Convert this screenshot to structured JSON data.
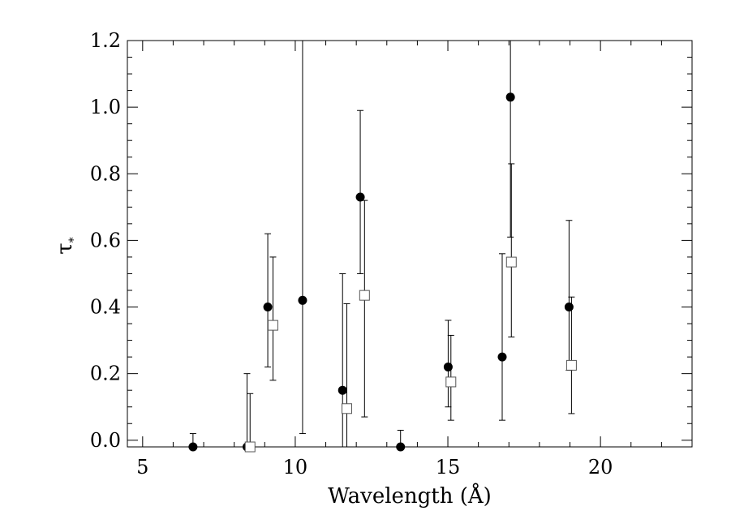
{
  "chart_data": {
    "type": "scatter",
    "xlabel": "Wavelength (Å)",
    "ylabel": "τ",
    "ylabel_sub": "*",
    "xlim": [
      4.5,
      23.0
    ],
    "ylim": [
      -0.02,
      1.2
    ],
    "x_ticks": [
      5,
      10,
      15,
      20
    ],
    "y_ticks": [
      0.0,
      0.2,
      0.4,
      0.6,
      0.8,
      1.0,
      1.2
    ],
    "y_tick_labels": [
      "0.0",
      "0.2",
      "0.4",
      "0.6",
      "0.8",
      "1.0",
      "1.2"
    ],
    "x_minor_step": 1,
    "y_minor_step": 0.05,
    "grid": false,
    "series": [
      {
        "marker": "filled-circle",
        "color": "#000000",
        "points": [
          {
            "x": 6.65,
            "y": -0.02,
            "lo": -0.02,
            "hi": 0.02
          },
          {
            "x": 8.42,
            "y": -0.02,
            "lo": -0.02,
            "hi": 0.2
          },
          {
            "x": 9.1,
            "y": 0.4,
            "lo": 0.22,
            "hi": 0.62
          },
          {
            "x": 10.24,
            "y": 0.42,
            "lo": 0.02,
            "hi": 1.2
          },
          {
            "x": 11.55,
            "y": 0.15,
            "lo": -0.02,
            "hi": 0.5
          },
          {
            "x": 12.13,
            "y": 0.73,
            "lo": 0.5,
            "hi": 0.99
          },
          {
            "x": 13.45,
            "y": -0.02,
            "lo": -0.02,
            "hi": 0.03
          },
          {
            "x": 15.01,
            "y": 0.22,
            "lo": 0.1,
            "hi": 0.36
          },
          {
            "x": 16.78,
            "y": 0.25,
            "lo": 0.06,
            "hi": 0.56
          },
          {
            "x": 17.05,
            "y": 1.03,
            "lo": 0.61,
            "hi": 1.2
          },
          {
            "x": 18.97,
            "y": 0.4,
            "lo": 0.21,
            "hi": 0.66
          }
        ]
      },
      {
        "marker": "open-square",
        "color": "#555555",
        "points": [
          {
            "x": 8.52,
            "y": -0.02,
            "lo": -0.02,
            "hi": 0.14
          },
          {
            "x": 9.27,
            "y": 0.345,
            "lo": 0.18,
            "hi": 0.55
          },
          {
            "x": 11.69,
            "y": 0.095,
            "lo": -0.02,
            "hi": 0.41
          },
          {
            "x": 12.27,
            "y": 0.435,
            "lo": 0.07,
            "hi": 0.72
          },
          {
            "x": 15.1,
            "y": 0.175,
            "lo": 0.06,
            "hi": 0.315
          },
          {
            "x": 17.08,
            "y": 0.535,
            "lo": 0.31,
            "hi": 0.83
          },
          {
            "x": 19.05,
            "y": 0.225,
            "lo": 0.08,
            "hi": 0.43
          }
        ]
      }
    ]
  }
}
